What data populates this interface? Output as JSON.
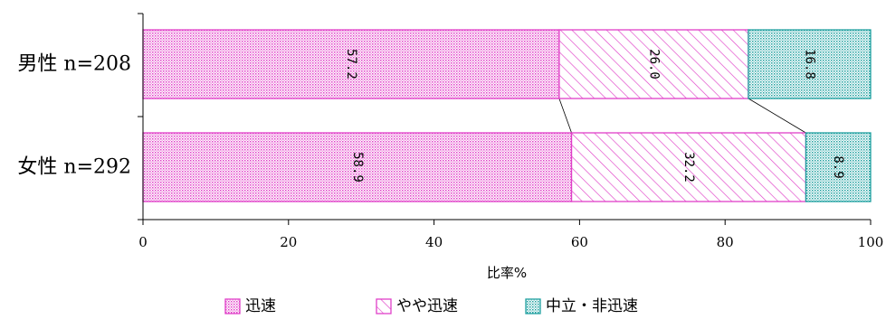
{
  "chart_data": {
    "type": "bar",
    "orientation": "horizontal",
    "stacked": true,
    "categories": [
      "男性 n=208",
      "女性 n=292"
    ],
    "series": [
      {
        "name": "迅速",
        "values": [
          57.2,
          58.9
        ],
        "color": "#e040c8",
        "pattern": "dots"
      },
      {
        "name": "やや迅速",
        "values": [
          26.0,
          32.2
        ],
        "color": "#e040c8",
        "pattern": "diagonal"
      },
      {
        "name": "中立・非迅速",
        "values": [
          16.8,
          8.9
        ],
        "color": "#20a0a0",
        "pattern": "dots"
      }
    ],
    "data_labels": [
      [
        "57.2",
        "26.0",
        "16.8"
      ],
      [
        "58.9",
        "32.2",
        "8.9"
      ]
    ],
    "x_ticks": [
      "0",
      "20",
      "40",
      "60",
      "80",
      "100"
    ],
    "xlabel": "比率%",
    "xlim": [
      0,
      100
    ],
    "legend_position": "bottom",
    "grid": false,
    "series_connector_lines": true
  }
}
